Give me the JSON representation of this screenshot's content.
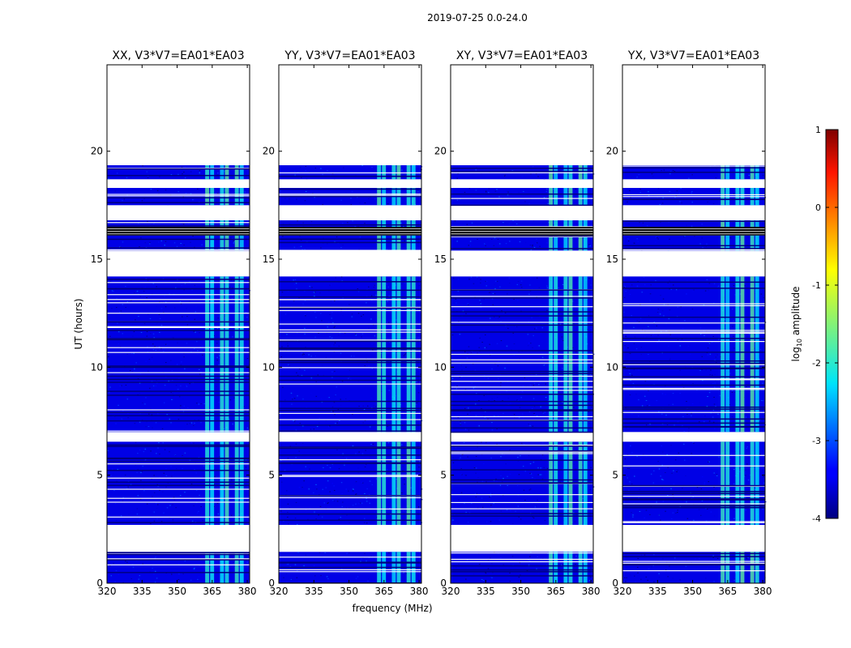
{
  "chart_data": {
    "type": "heatmap",
    "suptitle": "2019-07-25 0.0-24.0",
    "xlabel": "frequency (MHz)",
    "ylabel": "UT (hours)",
    "xlim": [
      320,
      381
    ],
    "ylim": [
      0,
      24
    ],
    "xticks": [
      320,
      335,
      350,
      365,
      380
    ],
    "yticks": [
      0,
      5,
      10,
      15,
      20
    ],
    "panels": [
      {
        "title": "XX, V3*V7=EA01*EA03"
      },
      {
        "title": "YY, V3*V7=EA01*EA03"
      },
      {
        "title": "XY, V3*V7=EA01*EA03"
      },
      {
        "title": "YX, V3*V7=EA01*EA03"
      }
    ],
    "data_segments_ut": [
      {
        "start": 0.0,
        "end": 1.45
      },
      {
        "start": 2.7,
        "end": 6.55
      },
      {
        "start": 7.0,
        "end": 14.2
      },
      {
        "start": 15.4,
        "end": 16.1
      },
      {
        "start": 16.4,
        "end": 16.8
      },
      {
        "start": 17.5,
        "end": 18.3
      },
      {
        "start": 18.7,
        "end": 19.35
      }
    ],
    "dense_flag_bands_ut": [
      {
        "start": 16.1,
        "end": 16.5
      }
    ],
    "rfi_band_mhz": [
      362,
      381
    ],
    "background_log10_amplitude": -3.5,
    "rfi_log10_amplitude": -1.6,
    "colorbar": {
      "label": "log10 amplitude",
      "min": -4,
      "max": 1,
      "ticks": [
        1,
        0,
        -1,
        -2,
        -3,
        -4
      ],
      "colormap": "jet"
    }
  }
}
